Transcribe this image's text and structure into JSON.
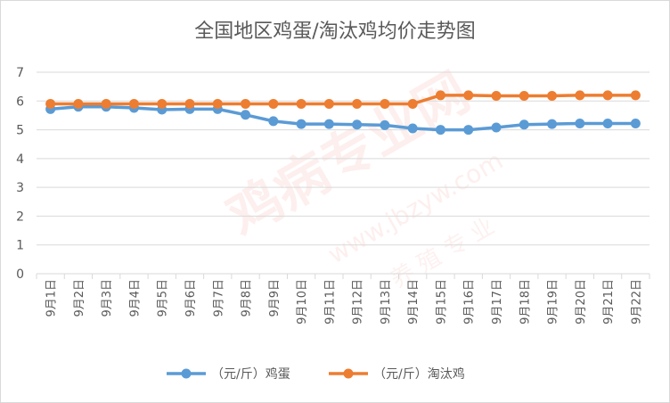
{
  "chart_data": {
    "type": "line",
    "title": "全国地区鸡蛋/淘汰鸡均价走势图",
    "categories": [
      "9月1日",
      "9月2日",
      "9月3日",
      "9月4日",
      "9月5日",
      "9月6日",
      "9月7日",
      "9月8日",
      "9月9日",
      "9月10日",
      "9月11日",
      "9月12日",
      "9月13日",
      "9月14日",
      "9月15日",
      "9月16日",
      "9月17日",
      "9月18日",
      "9月19日",
      "9月20日",
      "9月21日",
      "9月22日"
    ],
    "ylim": [
      0,
      7
    ],
    "yticks": [
      0,
      1,
      2,
      3,
      4,
      5,
      6,
      7
    ],
    "grid": true,
    "legend_position": "bottom",
    "series": [
      {
        "name": "（元/斤）鸡蛋",
        "color": "#5b9bd5",
        "values": [
          5.72,
          5.8,
          5.8,
          5.76,
          5.7,
          5.72,
          5.72,
          5.52,
          5.3,
          5.2,
          5.2,
          5.18,
          5.16,
          5.05,
          5.0,
          5.0,
          5.08,
          5.18,
          5.2,
          5.22,
          5.22,
          5.22
        ]
      },
      {
        "name": "（元/斤）淘汰鸡",
        "color": "#ed7d31",
        "values": [
          5.9,
          5.9,
          5.9,
          5.9,
          5.9,
          5.9,
          5.9,
          5.9,
          5.9,
          5.9,
          5.9,
          5.9,
          5.9,
          5.9,
          6.2,
          6.2,
          6.18,
          6.18,
          6.18,
          6.2,
          6.2,
          6.2
        ]
      }
    ]
  },
  "watermark": {
    "site_name": "鸡病专业网",
    "url": "www.jbzyw.com",
    "slogan": "养 殖 专 业"
  }
}
